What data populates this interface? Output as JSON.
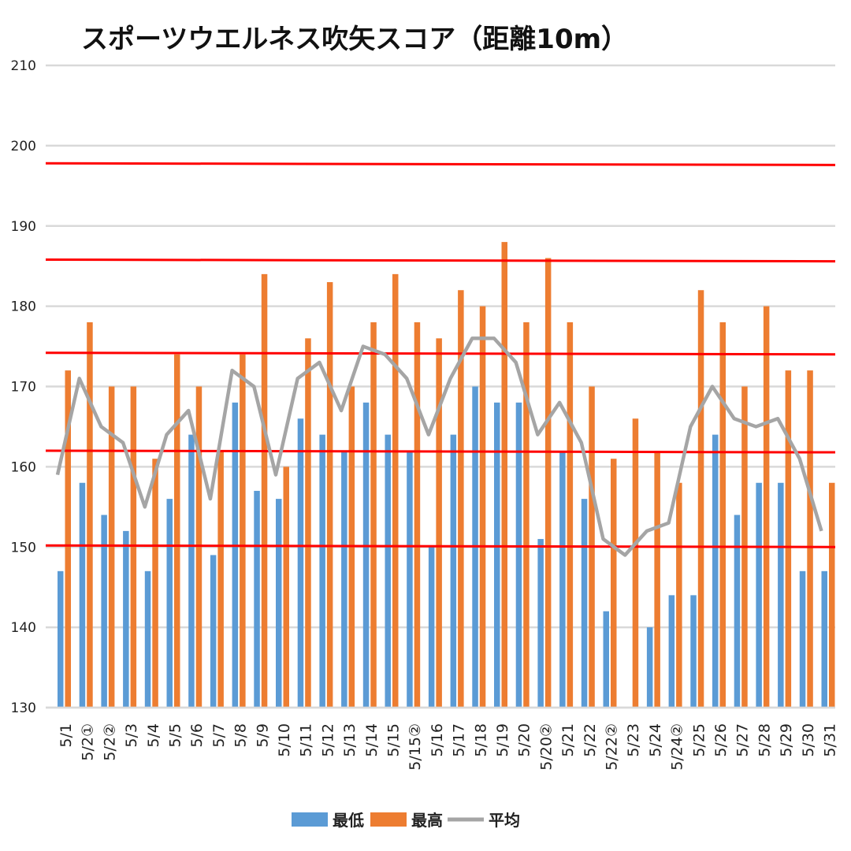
{
  "chart_data": {
    "type": "bar",
    "title": "スポーツウエルネス吹矢スコア（距離10m）",
    "xlabel": "",
    "ylabel": "",
    "ylim": [
      130,
      210
    ],
    "yticks": [
      130,
      140,
      150,
      160,
      170,
      180,
      190,
      200,
      210
    ],
    "grid": true,
    "legend_position": "bottom",
    "categories": [
      "5/1",
      "5/2①",
      "5/2②",
      "5/3",
      "5/4",
      "5/5",
      "5/6",
      "5/7",
      "5/8",
      "5/9",
      "5/10",
      "5/11",
      "5/12",
      "5/13",
      "5/14",
      "5/15",
      "5/15②",
      "5/16",
      "5/17",
      "5/18",
      "5/19",
      "5/20",
      "5/20②",
      "5/21",
      "5/22",
      "5/22②",
      "5/23",
      "5/24",
      "5/24②",
      "5/25",
      "5/26",
      "5/27",
      "5/28",
      "5/29",
      "5/30",
      "5/31"
    ],
    "series": [
      {
        "name": "最低",
        "kind": "bar",
        "color": "#5B9BD5",
        "values": [
          147,
          158,
          154,
          152,
          147,
          156,
          164,
          149,
          168,
          157,
          156,
          166,
          164,
          162,
          168,
          164,
          162,
          150,
          164,
          170,
          168,
          168,
          151,
          162,
          156,
          142,
          130,
          140,
          144,
          144,
          164,
          154,
          158,
          158,
          147,
          147
        ]
      },
      {
        "name": "最高",
        "kind": "bar",
        "color": "#ED7D31",
        "values": [
          172,
          178,
          170,
          170,
          161,
          174,
          170,
          162,
          174,
          184,
          160,
          176,
          183,
          170,
          178,
          184,
          178,
          176,
          182,
          180,
          188,
          178,
          186,
          178,
          170,
          161,
          166,
          162,
          158,
          182,
          178,
          170,
          180,
          172,
          172,
          158
        ]
      },
      {
        "name": "平均",
        "kind": "line",
        "color": "#A5A5A5",
        "values": [
          159,
          171,
          165,
          163,
          155,
          164,
          167,
          156,
          172,
          170,
          159,
          171,
          173,
          167,
          175,
          174,
          171,
          164,
          171,
          176,
          176,
          173,
          164,
          168,
          163,
          151,
          149,
          152,
          153,
          165,
          170,
          166,
          165,
          166,
          161,
          152
        ]
      }
    ],
    "reference_lines": {
      "color": "#FF0000",
      "lines": [
        {
          "start": 197.8,
          "end": 197.6
        },
        {
          "start": 185.8,
          "end": 185.6
        },
        {
          "start": 174.2,
          "end": 174.0
        },
        {
          "start": 162.0,
          "end": 161.8
        },
        {
          "start": 150.2,
          "end": 150.0
        }
      ]
    }
  }
}
